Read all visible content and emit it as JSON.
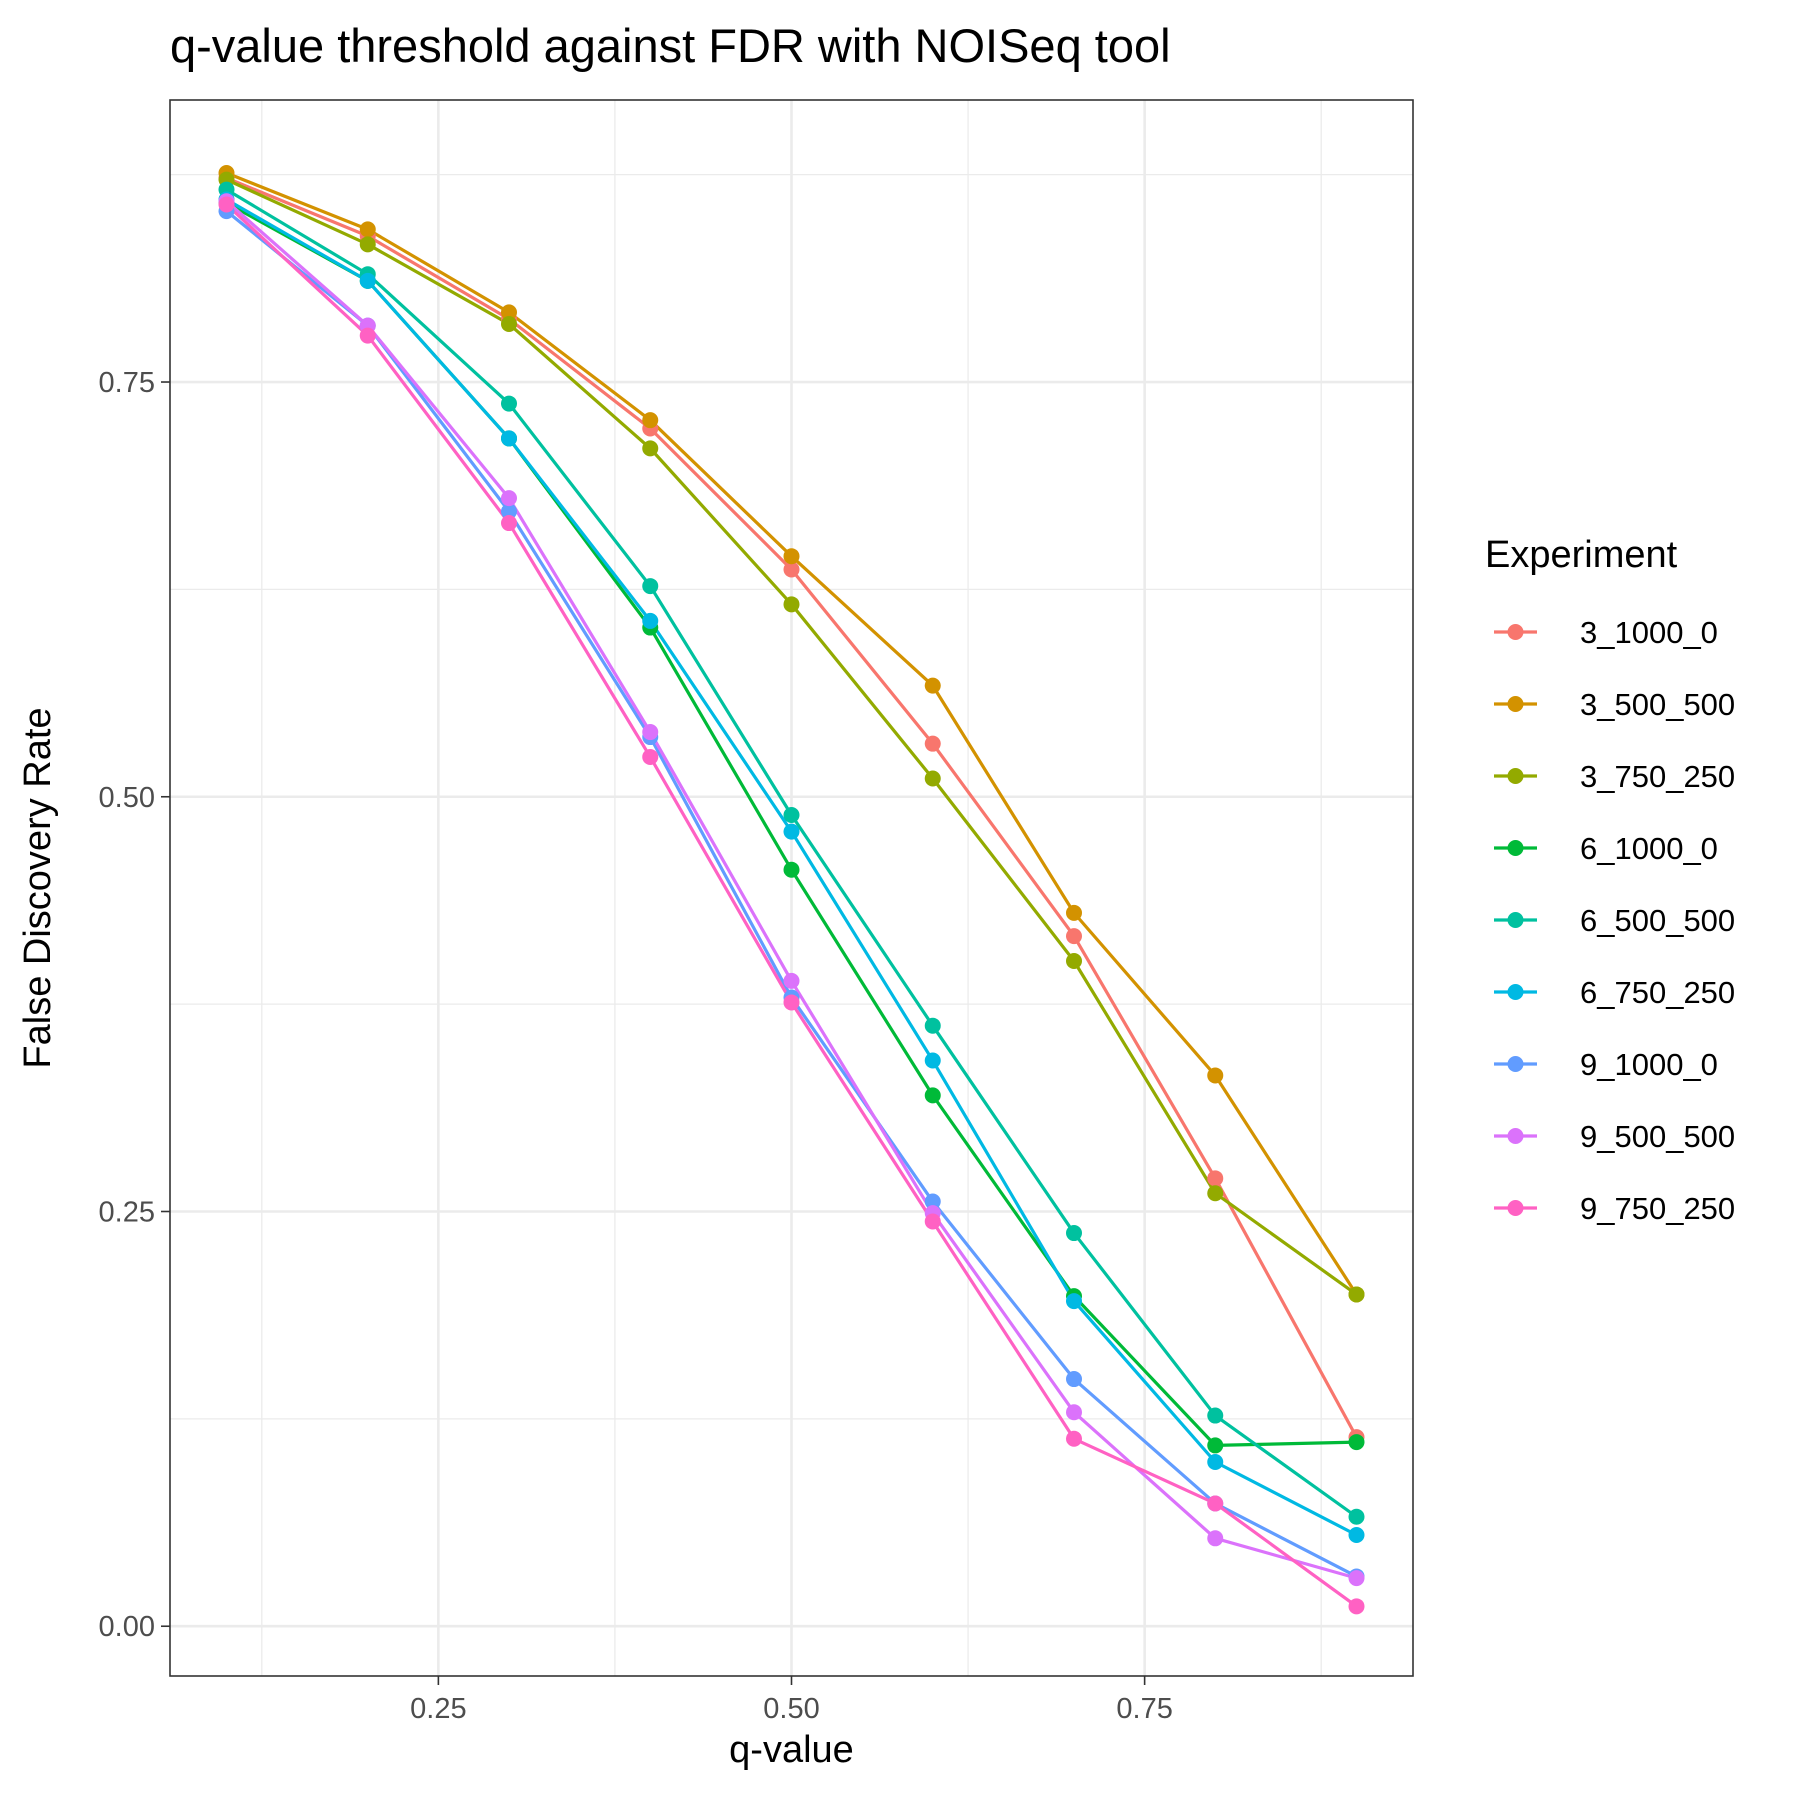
{
  "chart_data": {
    "type": "line",
    "title": "q-value threshold against FDR with NOISeq tool",
    "xlabel": "q-value",
    "ylabel": "False Discovery Rate",
    "xlim": [
      0.06,
      0.94
    ],
    "ylim": [
      -0.03,
      0.92
    ],
    "x_ticks": [
      0.25,
      0.5,
      0.75
    ],
    "x_tick_labels": [
      "0.25",
      "0.50",
      "0.75"
    ],
    "y_ticks": [
      0.0,
      0.25,
      0.5,
      0.75
    ],
    "y_tick_labels": [
      "0.00",
      "0.25",
      "0.50",
      "0.75"
    ],
    "x_minor": [
      0.125,
      0.375,
      0.625,
      0.875
    ],
    "y_minor": [
      0.125,
      0.375,
      0.625,
      0.875
    ],
    "grid": true,
    "legend": {
      "title": "Experiment",
      "position": "right"
    },
    "x": [
      0.1,
      0.2,
      0.3,
      0.4,
      0.5,
      0.6,
      0.7,
      0.8,
      0.9
    ],
    "series": [
      {
        "name": "3_1000_0",
        "color": "#F8766D",
        "values": [
          0.873,
          0.838,
          0.788,
          0.722,
          0.637,
          0.532,
          0.416,
          0.27,
          0.114
        ]
      },
      {
        "name": "3_500_500",
        "color": "#D39200",
        "values": [
          0.876,
          0.842,
          0.792,
          0.727,
          0.645,
          0.567,
          0.43,
          0.332,
          0.2
        ]
      },
      {
        "name": "3_750_250",
        "color": "#93AA00",
        "values": [
          0.872,
          0.833,
          0.785,
          0.71,
          0.616,
          0.511,
          0.401,
          0.261,
          0.2
        ]
      },
      {
        "name": "6_1000_0",
        "color": "#00BA38",
        "values": [
          0.858,
          0.811,
          0.716,
          0.602,
          0.456,
          0.32,
          0.199,
          0.109,
          0.111
        ]
      },
      {
        "name": "6_500_500",
        "color": "#00C19F",
        "values": [
          0.866,
          0.815,
          0.737,
          0.627,
          0.489,
          0.362,
          0.237,
          0.127,
          0.066
        ]
      },
      {
        "name": "6_750_250",
        "color": "#00B9E3",
        "values": [
          0.86,
          0.811,
          0.716,
          0.606,
          0.479,
          0.341,
          0.196,
          0.099,
          0.055
        ]
      },
      {
        "name": "9_1000_0",
        "color": "#619CFF",
        "values": [
          0.853,
          0.784,
          0.672,
          0.536,
          0.379,
          0.256,
          0.149,
          0.074,
          0.03
        ]
      },
      {
        "name": "9_500_500",
        "color": "#DB72FB",
        "values": [
          0.859,
          0.784,
          0.68,
          0.539,
          0.389,
          0.249,
          0.129,
          0.053,
          0.029
        ]
      },
      {
        "name": "9_750_250",
        "color": "#FF61C3",
        "values": [
          0.857,
          0.778,
          0.665,
          0.524,
          0.376,
          0.244,
          0.113,
          0.074,
          0.012
        ]
      }
    ]
  }
}
